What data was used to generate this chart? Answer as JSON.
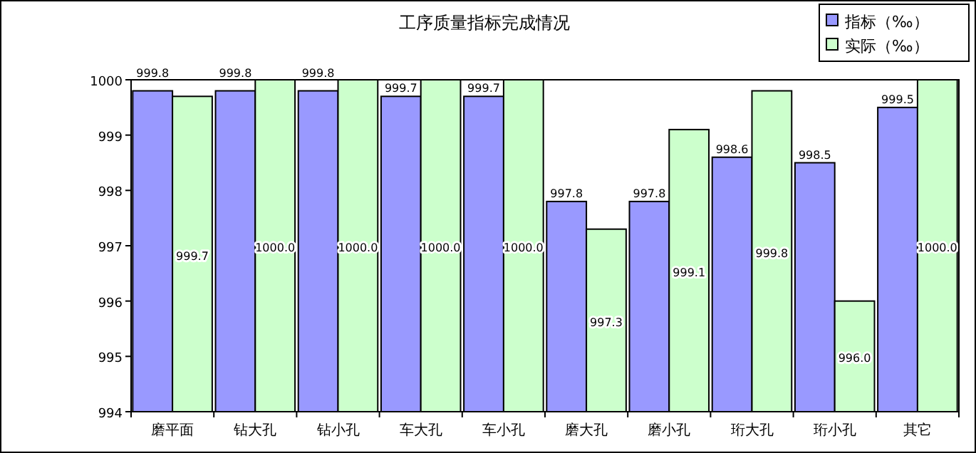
{
  "chart_data": {
    "type": "bar",
    "title": "工序质量指标完成情况",
    "categories": [
      "磨平面",
      "钻大孔",
      "钻小孔",
      "车大孔",
      "车小孔",
      "磨大孔",
      "磨小孔",
      "珩大孔",
      "珩小孔",
      "其它"
    ],
    "series": [
      {
        "name": "指标（‰）",
        "color": "#9999ff",
        "values": [
          999.8,
          999.8,
          999.8,
          999.7,
          999.7,
          997.8,
          997.8,
          998.6,
          998.5,
          999.5
        ],
        "value_labels": [
          "999.8",
          "999.8",
          "999.8",
          "999.7",
          "999.7",
          "997.8",
          "997.8",
          "998.6",
          "998.5",
          "999.5"
        ]
      },
      {
        "name": "实际（‰）",
        "color": "#ccffcc",
        "values": [
          999.7,
          1000.0,
          1000.0,
          1000.0,
          1000.0,
          997.3,
          999.1,
          999.8,
          996.0,
          1000.0
        ],
        "value_labels": [
          "999.7",
          "1000.0",
          "1000.0",
          "1000.0",
          "1000.0",
          "997.3",
          "999.1",
          "999.8",
          "996.0",
          "1000.0"
        ]
      }
    ],
    "ylim": [
      994,
      1000
    ],
    "yticks": [
      994,
      995,
      996,
      997,
      998,
      999,
      1000
    ],
    "grid": false,
    "legend": "top right"
  }
}
